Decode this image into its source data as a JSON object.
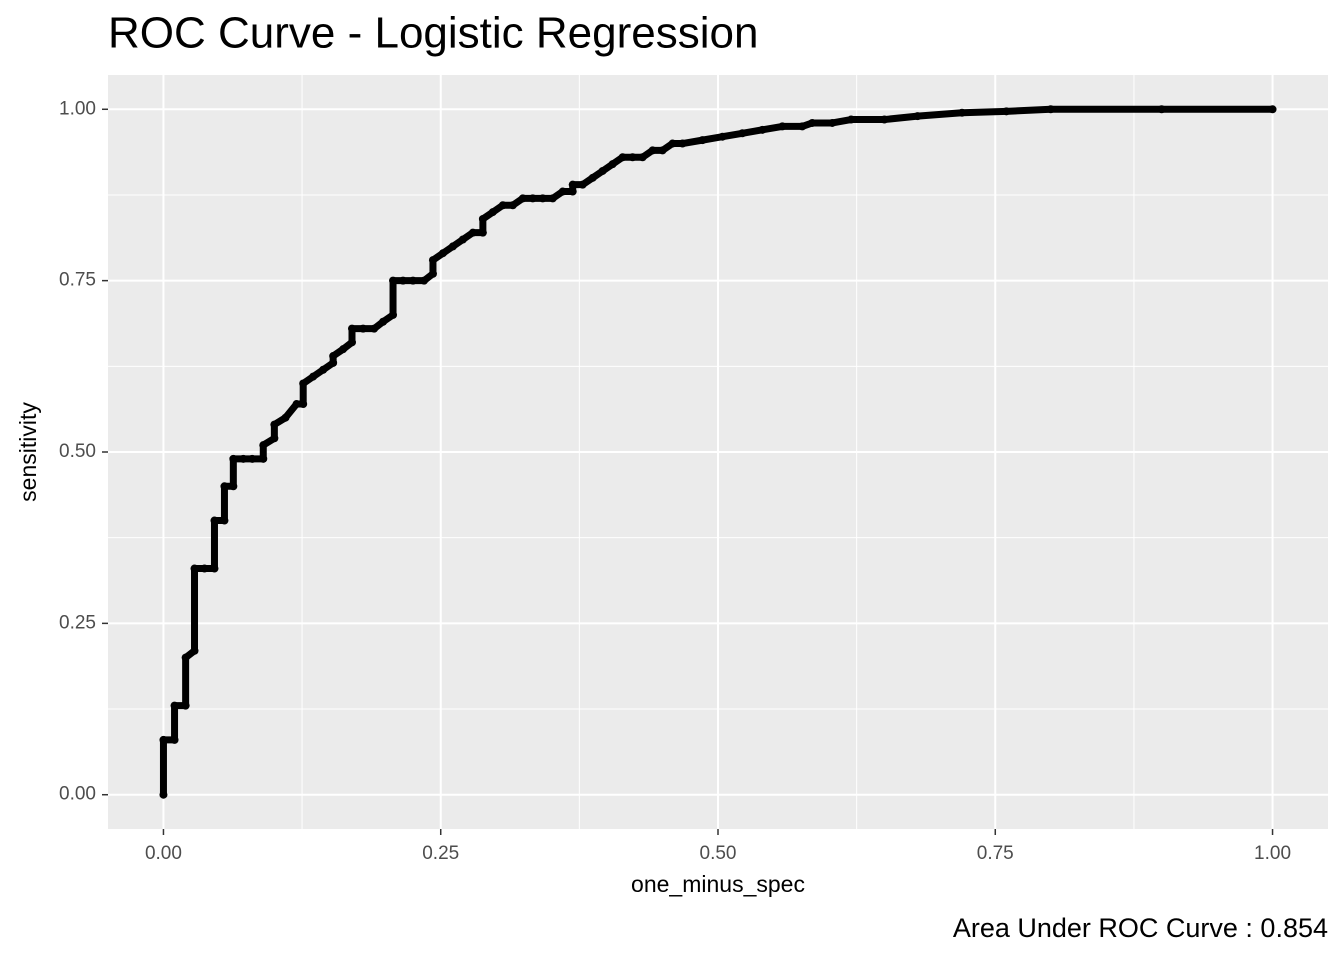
{
  "chart_data": {
    "type": "line",
    "title": "ROC Curve - Logistic Regression",
    "x_label": "one_minus_spec",
    "y_label": "sensitivity",
    "caption": "Area Under ROC Curve : 0.854",
    "xlim": [
      -0.05,
      1.05
    ],
    "ylim": [
      -0.05,
      1.05
    ],
    "xticks": [
      {
        "value": 0,
        "label": "0.00"
      },
      {
        "value": 0.25,
        "label": "0.25"
      },
      {
        "value": 0.5,
        "label": "0.50"
      },
      {
        "value": 0.75,
        "label": "0.75"
      },
      {
        "value": 1,
        "label": "1.00"
      }
    ],
    "yticks": [
      {
        "value": 0,
        "label": "0.00"
      },
      {
        "value": 0.25,
        "label": "0.25"
      },
      {
        "value": 0.5,
        "label": "0.50"
      },
      {
        "value": 0.75,
        "label": "0.75"
      },
      {
        "value": 1,
        "label": "1.00"
      }
    ],
    "x_minor_ticks": [
      0.125,
      0.375,
      0.625,
      0.875
    ],
    "y_minor_ticks": [
      0.125,
      0.375,
      0.625,
      0.875
    ],
    "grid": true,
    "color": "#000000",
    "x": [
      0,
      0,
      0.01,
      0.01,
      0.02,
      0.02,
      0.028,
      0.028,
      0.037,
      0.046,
      0.046,
      0.055,
      0.055,
      0.063,
      0.063,
      0.072,
      0.08,
      0.09,
      0.09,
      0.1,
      0.1,
      0.11,
      0.12,
      0.126,
      0.126,
      0.135,
      0.144,
      0.153,
      0.153,
      0.162,
      0.17,
      0.17,
      0.18,
      0.19,
      0.198,
      0.207,
      0.207,
      0.216,
      0.225,
      0.235,
      0.243,
      0.243,
      0.252,
      0.261,
      0.27,
      0.279,
      0.288,
      0.288,
      0.297,
      0.306,
      0.315,
      0.324,
      0.333,
      0.342,
      0.351,
      0.36,
      0.369,
      0.369,
      0.378,
      0.387,
      0.396,
      0.405,
      0.414,
      0.423,
      0.432,
      0.441,
      0.45,
      0.459,
      0.468,
      0.486,
      0.504,
      0.522,
      0.54,
      0.558,
      0.576,
      0.585,
      0.603,
      0.62,
      0.65,
      0.68,
      0.72,
      0.76,
      0.8,
      0.9,
      1
    ],
    "values": [
      0,
      0.08,
      0.08,
      0.13,
      0.13,
      0.2,
      0.21,
      0.33,
      0.33,
      0.33,
      0.4,
      0.4,
      0.45,
      0.45,
      0.49,
      0.49,
      0.49,
      0.49,
      0.51,
      0.52,
      0.54,
      0.55,
      0.57,
      0.57,
      0.6,
      0.61,
      0.62,
      0.63,
      0.64,
      0.65,
      0.66,
      0.68,
      0.68,
      0.68,
      0.69,
      0.7,
      0.75,
      0.75,
      0.75,
      0.75,
      0.76,
      0.78,
      0.79,
      0.8,
      0.81,
      0.82,
      0.82,
      0.84,
      0.85,
      0.86,
      0.86,
      0.87,
      0.87,
      0.87,
      0.87,
      0.88,
      0.88,
      0.89,
      0.89,
      0.9,
      0.91,
      0.92,
      0.93,
      0.93,
      0.93,
      0.94,
      0.94,
      0.95,
      0.95,
      0.955,
      0.96,
      0.965,
      0.97,
      0.975,
      0.975,
      0.98,
      0.98,
      0.985,
      0.985,
      0.99,
      0.995,
      0.997,
      1,
      1,
      1
    ]
  }
}
